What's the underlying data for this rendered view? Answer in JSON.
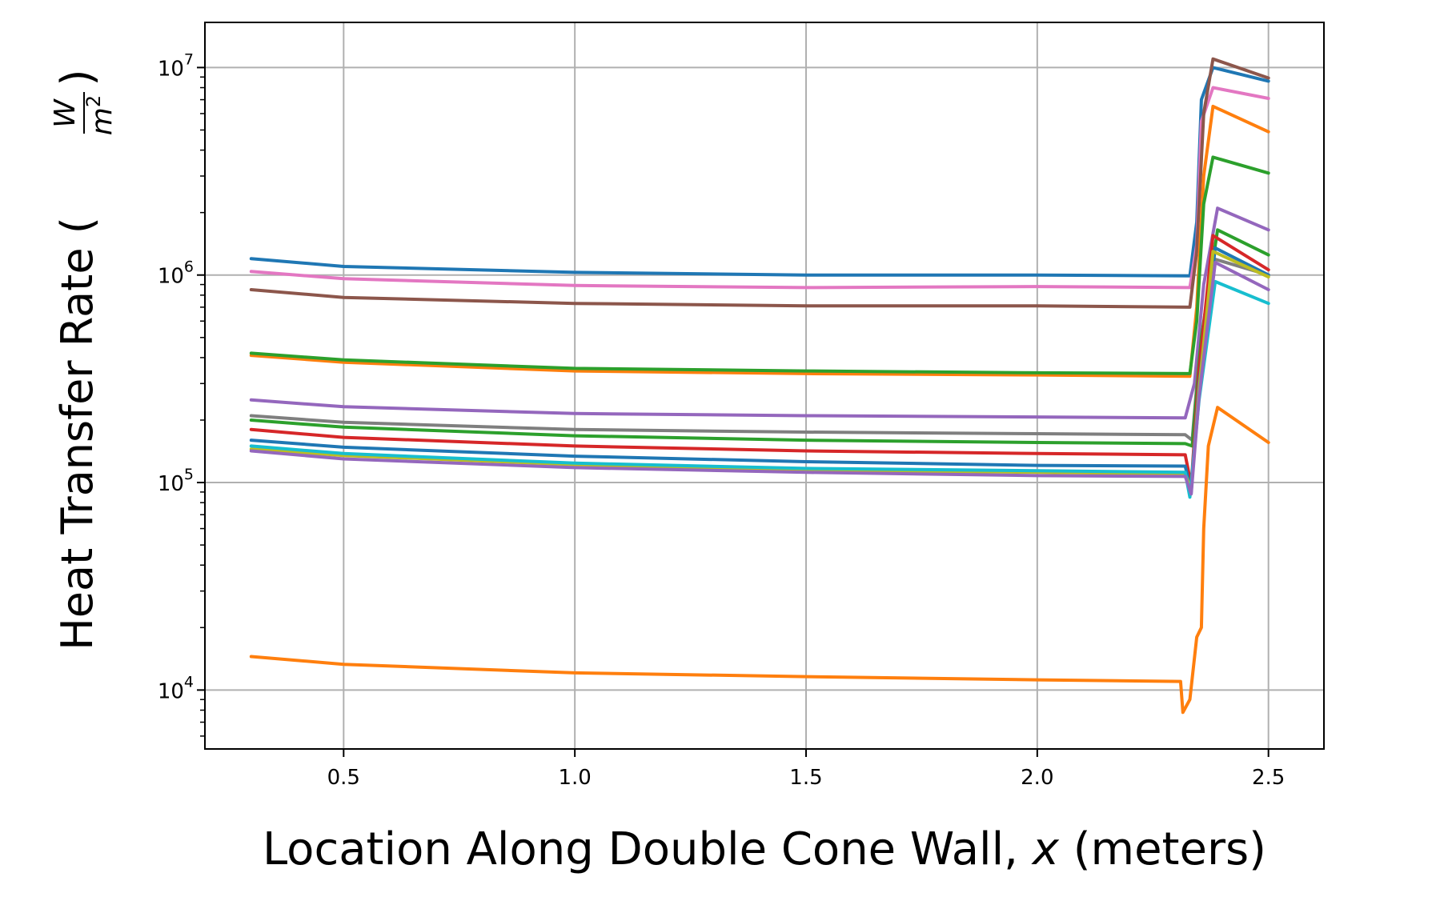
{
  "chart_data": {
    "type": "line",
    "title": "",
    "xlabel": "Location Along Double Cone Wall, x (meters)",
    "ylabel": "Heat Transfer Rate (W/m²)",
    "xlim": [
      0.2,
      2.62
    ],
    "ylim": [
      5200,
      16500000
    ],
    "yscale": "log",
    "grid": true,
    "legend": "none",
    "x_ticks": [
      "0.5",
      "1.0",
      "1.5",
      "2.0",
      "2.5"
    ],
    "y_ticks": [
      {
        "value": 10000,
        "base": "10",
        "exp": "4"
      },
      {
        "value": 100000,
        "base": "10",
        "exp": "5"
      },
      {
        "value": 1000000,
        "base": "10",
        "exp": "6"
      },
      {
        "value": 10000000,
        "base": "10",
        "exp": "7"
      }
    ],
    "series": [
      {
        "color": "#1f77b4",
        "x": [
          0.3,
          0.5,
          1.0,
          1.5,
          2.0,
          2.33,
          2.345,
          2.355,
          2.38,
          2.5
        ],
        "y": [
          1200000,
          1100000,
          1030000,
          1000000,
          1000000,
          990000,
          1800000,
          7000000,
          10000000,
          8600000
        ]
      },
      {
        "color": "#e377c2",
        "x": [
          0.3,
          0.5,
          1.0,
          1.5,
          2.0,
          2.33,
          2.345,
          2.355,
          2.38,
          2.5
        ],
        "y": [
          1040000,
          960000,
          890000,
          870000,
          880000,
          870000,
          1400000,
          5500000,
          8000000,
          7100000
        ]
      },
      {
        "color": "#8c564b",
        "x": [
          0.3,
          0.5,
          1.0,
          1.5,
          2.0,
          2.33,
          2.345,
          2.36,
          2.38,
          2.5
        ],
        "y": [
          850000,
          780000,
          730000,
          710000,
          710000,
          700000,
          1300000,
          6000000,
          11000000,
          8900000
        ]
      },
      {
        "color": "#ff7f0e",
        "x": [
          0.3,
          0.5,
          1.0,
          1.5,
          2.0,
          2.33,
          2.345,
          2.36,
          2.38,
          2.5
        ],
        "y": [
          410000,
          380000,
          345000,
          335000,
          330000,
          325000,
          700000,
          3000000,
          6500000,
          4900000
        ]
      },
      {
        "color": "#2ca02c",
        "x": [
          0.3,
          0.5,
          1.0,
          1.5,
          2.0,
          2.33,
          2.345,
          2.36,
          2.38,
          2.5
        ],
        "y": [
          420000,
          390000,
          355000,
          345000,
          338000,
          335000,
          600000,
          2200000,
          3700000,
          3100000
        ]
      },
      {
        "color": "#9467bd",
        "x": [
          0.3,
          0.5,
          1.0,
          1.5,
          2.0,
          2.32,
          2.34,
          2.36,
          2.39,
          2.5
        ],
        "y": [
          250000,
          232000,
          215000,
          210000,
          207000,
          205000,
          300000,
          900000,
          2100000,
          1650000
        ]
      },
      {
        "color": "#7f7f7f",
        "x": [
          0.3,
          0.5,
          1.0,
          1.5,
          2.0,
          2.32,
          2.335,
          2.35,
          2.38,
          2.5
        ],
        "y": [
          210000,
          195000,
          180000,
          175000,
          172000,
          170000,
          160000,
          400000,
          1200000,
          1000000
        ]
      },
      {
        "color": "#2ca02c",
        "x": [
          0.3,
          0.5,
          1.0,
          1.5,
          2.0,
          2.32,
          2.335,
          2.355,
          2.39,
          2.5
        ],
        "y": [
          200000,
          185000,
          168000,
          160000,
          156000,
          154000,
          150000,
          500000,
          1650000,
          1250000
        ]
      },
      {
        "color": "#d62728",
        "x": [
          0.3,
          0.5,
          1.0,
          1.5,
          2.0,
          2.32,
          2.333,
          2.35,
          2.38,
          2.5
        ],
        "y": [
          180000,
          165000,
          150000,
          142000,
          138000,
          136000,
          97000,
          350000,
          1550000,
          1060000
        ]
      },
      {
        "color": "#1f77b4",
        "x": [
          0.3,
          0.5,
          1.0,
          1.5,
          2.0,
          2.32,
          2.333,
          2.35,
          2.385,
          2.5
        ],
        "y": [
          160000,
          148000,
          134000,
          126000,
          121000,
          120000,
          90000,
          300000,
          1350000,
          1000000
        ]
      },
      {
        "color": "#bcbd22",
        "x": [
          0.3,
          0.5,
          1.0,
          1.5,
          2.0,
          2.32,
          2.333,
          2.35,
          2.38,
          2.5
        ],
        "y": [
          145000,
          135000,
          122000,
          115000,
          112000,
          110000,
          92000,
          280000,
          1300000,
          980000
        ]
      },
      {
        "color": "#17becf",
        "x": [
          0.3,
          0.5,
          1.0,
          1.5,
          2.0,
          2.32,
          2.33,
          2.35,
          2.385,
          2.5
        ],
        "y": [
          150000,
          138000,
          124000,
          117000,
          114000,
          112000,
          85000,
          250000,
          930000,
          730000
        ]
      },
      {
        "color": "#9467bd",
        "x": [
          0.3,
          0.5,
          1.0,
          1.5,
          2.0,
          2.32,
          2.333,
          2.35,
          2.385,
          2.5
        ],
        "y": [
          142000,
          130000,
          118000,
          112000,
          108000,
          107000,
          88000,
          260000,
          1150000,
          850000
        ]
      },
      {
        "color": "#ff7f0e",
        "x": [
          0.3,
          0.5,
          1.0,
          1.5,
          2.0,
          2.31,
          2.315,
          2.33,
          2.345,
          2.355,
          2.36,
          2.37,
          2.39,
          2.5
        ],
        "y": [
          14500,
          13300,
          12100,
          11600,
          11200,
          11000,
          7800,
          9000,
          18000,
          20000,
          60000,
          150000,
          230000,
          156000
        ]
      }
    ]
  }
}
